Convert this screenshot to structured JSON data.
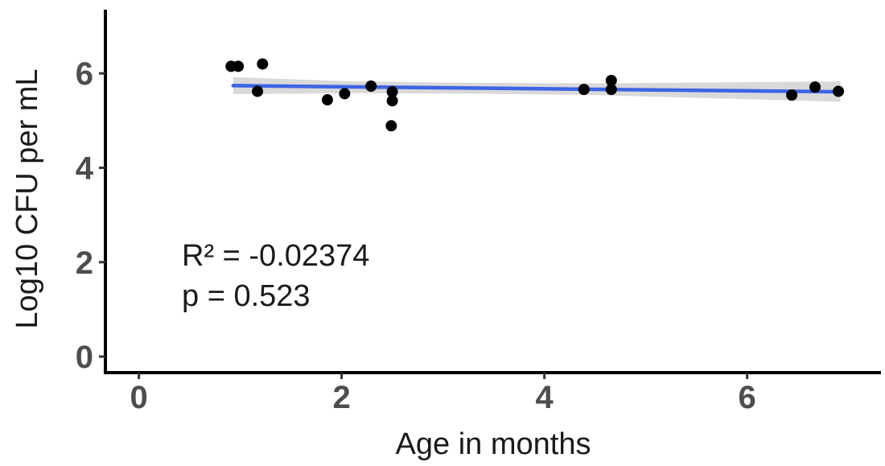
{
  "figure": {
    "background": "#ffffff"
  },
  "chart_data": {
    "type": "scatter",
    "title": "",
    "xlabel": "Age in months",
    "ylabel": "Log10 CFU per mL",
    "xlim": [
      -0.33,
      7.32
    ],
    "ylim": [
      -0.34,
      7.35
    ],
    "x_ticks": [
      0,
      2,
      4,
      6
    ],
    "y_ticks": [
      0,
      2,
      4,
      6
    ],
    "grid": false,
    "legend": false,
    "points": [
      [
        0.91,
        6.15
      ],
      [
        0.98,
        6.15
      ],
      [
        1.22,
        6.2
      ],
      [
        1.17,
        5.62
      ],
      [
        1.86,
        5.44
      ],
      [
        2.03,
        5.57
      ],
      [
        2.29,
        5.73
      ],
      [
        2.5,
        5.61
      ],
      [
        2.5,
        5.42
      ],
      [
        2.49,
        4.89
      ],
      [
        4.39,
        5.66
      ],
      [
        4.66,
        5.85
      ],
      [
        4.66,
        5.66
      ],
      [
        6.44,
        5.54
      ],
      [
        6.67,
        5.71
      ],
      [
        6.9,
        5.62
      ]
    ],
    "regression_line": {
      "x": [
        0.93,
        6.92
      ],
      "y": [
        5.74,
        5.61
      ]
    },
    "ci_band": {
      "x": [
        0.93,
        2.1,
        3.3,
        4.5,
        6.92
      ],
      "upper": [
        5.92,
        5.83,
        5.8,
        5.79,
        5.83
      ],
      "lower": [
        5.56,
        5.58,
        5.57,
        5.54,
        5.4
      ]
    },
    "annotations": {
      "r2": "R² = -0.02374",
      "p": "p = 0.523"
    },
    "colors": {
      "point": "#000000",
      "regression_line": "#3D64E4",
      "ci_band": "#D9D9D9",
      "axis_line": "#000000",
      "tick_mark": "#333333",
      "tick_label": "#4D4D4D",
      "text": "#1A1A1A"
    }
  }
}
